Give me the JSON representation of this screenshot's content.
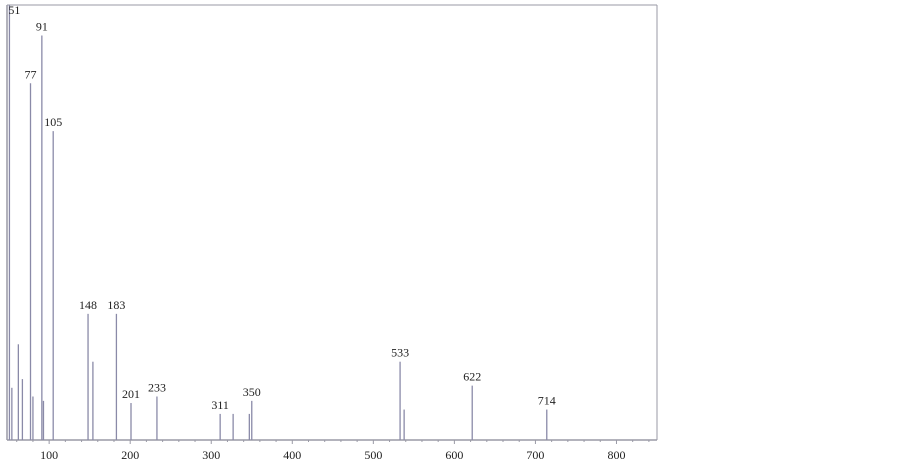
{
  "chart_data": {
    "type": "bar",
    "title": "",
    "xlabel": "",
    "ylabel": "",
    "xlim": [
      48,
      850
    ],
    "ylim": [
      0,
      100
    ],
    "grid": false,
    "x_ticks": [
      100,
      200,
      300,
      400,
      500,
      600,
      700,
      800
    ],
    "peaks": [
      {
        "mz": 51,
        "intensity": 100,
        "label": "51"
      },
      {
        "mz": 54,
        "intensity": 12
      },
      {
        "mz": 62,
        "intensity": 22
      },
      {
        "mz": 67,
        "intensity": 14
      },
      {
        "mz": 77,
        "intensity": 82,
        "label": "77"
      },
      {
        "mz": 80,
        "intensity": 10
      },
      {
        "mz": 91,
        "intensity": 93,
        "label": "91"
      },
      {
        "mz": 93,
        "intensity": 9
      },
      {
        "mz": 105,
        "intensity": 71,
        "label": "105"
      },
      {
        "mz": 148,
        "intensity": 29,
        "label": "148"
      },
      {
        "mz": 154,
        "intensity": 18
      },
      {
        "mz": 183,
        "intensity": 29,
        "label": "183"
      },
      {
        "mz": 201,
        "intensity": 8.5,
        "label": "201"
      },
      {
        "mz": 233,
        "intensity": 10,
        "label": "233"
      },
      {
        "mz": 311,
        "intensity": 6,
        "label": "311"
      },
      {
        "mz": 327,
        "intensity": 6
      },
      {
        "mz": 347,
        "intensity": 6
      },
      {
        "mz": 350,
        "intensity": 9,
        "label": "350"
      },
      {
        "mz": 533,
        "intensity": 18,
        "label": "533"
      },
      {
        "mz": 538,
        "intensity": 7
      },
      {
        "mz": 622,
        "intensity": 12.5,
        "label": "622"
      },
      {
        "mz": 714,
        "intensity": 7,
        "label": "714"
      }
    ],
    "colors": {
      "peak": "#8a8aa8",
      "frame": "#9a9aa6"
    }
  }
}
